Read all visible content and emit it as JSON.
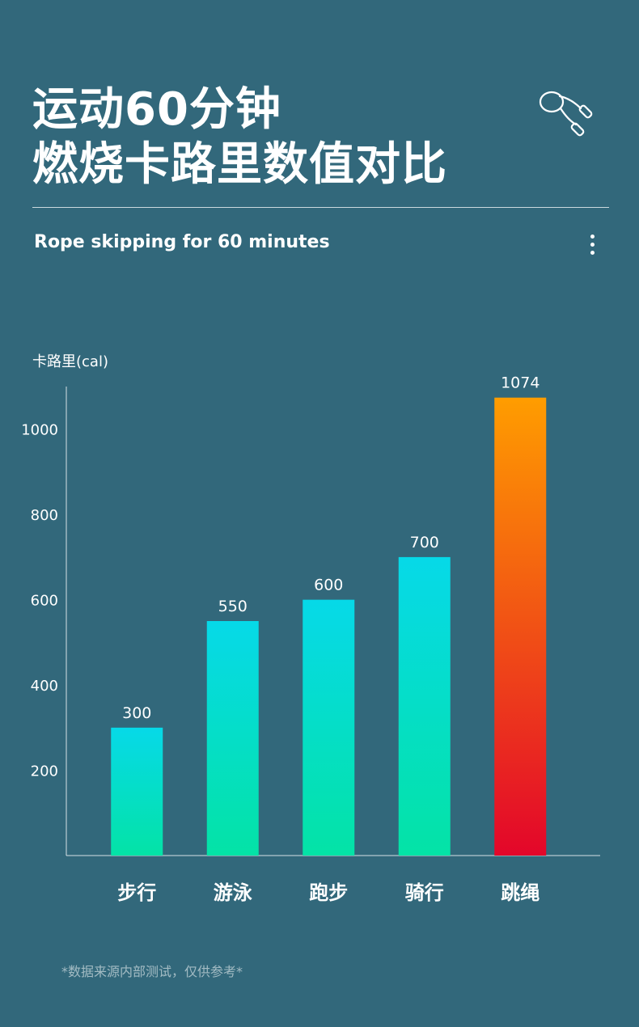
{
  "header": {
    "title_line1": "运动60分钟",
    "title_line2": "燃烧卡路里数值对比",
    "subtitle": "Rope skipping for 60 minutes",
    "icon": "jump-rope-icon",
    "menu_icon": "more-vertical-icon"
  },
  "chart_data": {
    "type": "bar",
    "title": "",
    "ylabel": "卡路里(cal)",
    "xlabel": "",
    "categories": [
      "步行",
      "游泳",
      "跑步",
      "骑行",
      "跳绳"
    ],
    "values": [
      300,
      550,
      600,
      700,
      1074
    ],
    "data_labels": [
      "300",
      "550",
      "600",
      "700",
      "1074"
    ],
    "yticks": [
      200,
      400,
      600,
      800,
      1000
    ],
    "ylim": [
      0,
      1100
    ],
    "grid": false,
    "legend": "none",
    "colors": {
      "default_top": "#06d9e8",
      "default_bottom": "#04e3a6",
      "highlight_top": "#ff9d00",
      "highlight_bottom": "#e3062a"
    },
    "highlight_index": 4
  },
  "footnote": "*数据来源内部测试，仅供参考*"
}
